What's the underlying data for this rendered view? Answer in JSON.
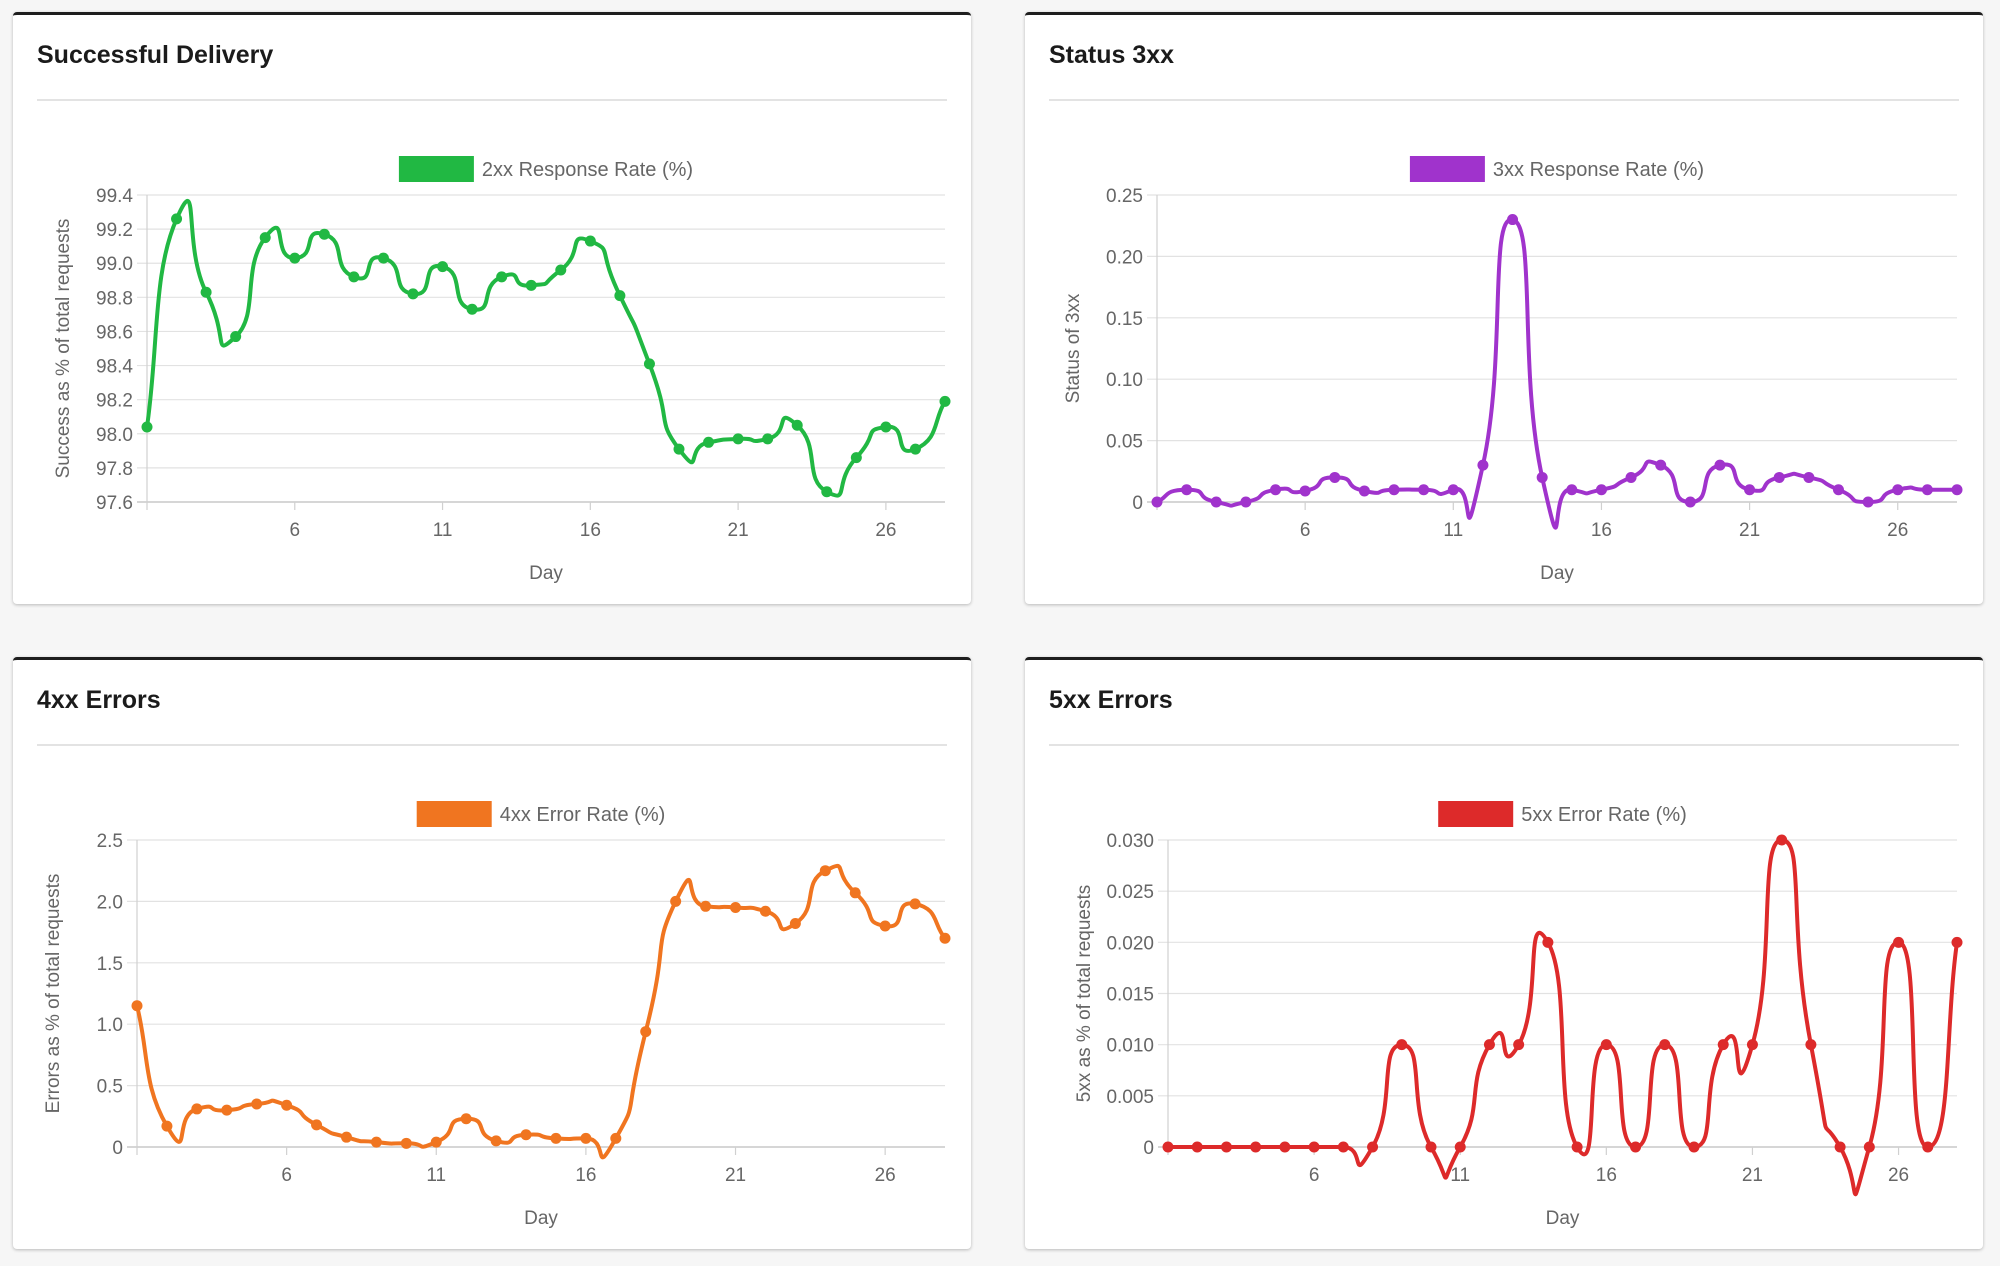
{
  "charts": [
    {
      "title": "Successful Delivery",
      "color": "#21b843",
      "chart_data": {
        "type": "line",
        "title": "Successful Delivery",
        "legend": "2xx Response Rate (%)",
        "xlabel": "Day",
        "ylabel": "Success as % of total requests",
        "x": [
          1,
          2,
          3,
          4,
          5,
          6,
          7,
          8,
          9,
          10,
          11,
          12,
          13,
          14,
          15,
          16,
          17,
          18,
          19,
          20,
          21,
          22,
          23,
          24,
          25,
          26,
          27,
          28
        ],
        "values": [
          98.04,
          99.26,
          98.83,
          98.57,
          99.15,
          99.03,
          99.17,
          98.92,
          99.03,
          98.82,
          98.98,
          98.73,
          98.92,
          98.87,
          98.96,
          99.13,
          98.81,
          98.41,
          97.91,
          97.95,
          97.97,
          97.97,
          98.05,
          97.66,
          97.86,
          98.04,
          97.91,
          98.19
        ],
        "ylim": [
          97.6,
          99.4
        ],
        "yticks": [
          "99.4",
          "99.2",
          "99.0",
          "98.8",
          "98.6",
          "98.4",
          "98.2",
          "98.0",
          "97.8",
          "97.6"
        ],
        "xticks": [
          "6",
          "11",
          "16",
          "21",
          "26"
        ]
      }
    },
    {
      "title": "Status 3xx",
      "color": "#a033cc",
      "chart_data": {
        "type": "line",
        "title": "Status 3xx",
        "legend": "3xx Response Rate (%)",
        "xlabel": "Day",
        "ylabel": "Status of 3xx",
        "x": [
          1,
          2,
          3,
          4,
          5,
          6,
          7,
          8,
          9,
          10,
          11,
          12,
          13,
          14,
          15,
          16,
          17,
          18,
          19,
          20,
          21,
          22,
          23,
          24,
          25,
          26,
          27,
          28
        ],
        "values": [
          0,
          0.01,
          0,
          0,
          0.01,
          0.009,
          0.02,
          0.009,
          0.01,
          0.01,
          0.01,
          0.03,
          0.23,
          0.02,
          0.01,
          0.01,
          0.02,
          0.03,
          0,
          0.03,
          0.01,
          0.02,
          0.02,
          0.01,
          0,
          0.01,
          0.01,
          0.01
        ],
        "ylim": [
          0,
          0.25
        ],
        "yticks": [
          "0.25",
          "0.20",
          "0.15",
          "0.10",
          "0.05",
          "0"
        ],
        "xticks": [
          "6",
          "11",
          "16",
          "21",
          "26"
        ]
      }
    },
    {
      "title": "4xx Errors",
      "color": "#f07520",
      "chart_data": {
        "type": "line",
        "title": "4xx Errors",
        "legend": "4xx Error Rate (%)",
        "xlabel": "Day",
        "ylabel": "Errors as % of total requests",
        "x": [
          1,
          2,
          3,
          4,
          5,
          6,
          7,
          8,
          9,
          10,
          11,
          12,
          13,
          14,
          15,
          16,
          17,
          18,
          19,
          20,
          21,
          22,
          23,
          24,
          25,
          26,
          27,
          28
        ],
        "values": [
          1.15,
          0.17,
          0.31,
          0.3,
          0.35,
          0.34,
          0.18,
          0.08,
          0.04,
          0.03,
          0.04,
          0.23,
          0.05,
          0.1,
          0.07,
          0.07,
          0.07,
          0.94,
          2.0,
          1.96,
          1.95,
          1.92,
          1.82,
          2.25,
          2.07,
          1.8,
          1.98,
          1.7
        ],
        "ylim": [
          0,
          2.5
        ],
        "yticks": [
          "2.5",
          "2.0",
          "1.5",
          "1.0",
          "0.5",
          "0"
        ],
        "xticks": [
          "6",
          "11",
          "16",
          "21",
          "26"
        ]
      }
    },
    {
      "title": "5xx Errors",
      "color": "#dd2a2a",
      "chart_data": {
        "type": "line",
        "title": "5xx Errors",
        "legend": "5xx Error Rate (%)",
        "xlabel": "Day",
        "ylabel": "5xx as % of total requests",
        "x": [
          1,
          2,
          3,
          4,
          5,
          6,
          7,
          8,
          9,
          10,
          11,
          12,
          13,
          14,
          15,
          16,
          17,
          18,
          19,
          20,
          21,
          22,
          23,
          24,
          25,
          26,
          27,
          28
        ],
        "values": [
          0,
          0,
          0,
          0,
          0,
          0,
          0,
          0,
          0.01,
          0,
          0,
          0.01,
          0.01,
          0.02,
          0,
          0.01,
          0,
          0.01,
          0,
          0.01,
          0.01,
          0.03,
          0.01,
          0,
          0,
          0.02,
          0,
          0.02
        ],
        "ylim": [
          0,
          0.03
        ],
        "yticks": [
          "0.030",
          "0.025",
          "0.020",
          "0.015",
          "0.010",
          "0.005",
          "0"
        ],
        "xticks": [
          "6",
          "11",
          "16",
          "21",
          "26"
        ]
      }
    }
  ]
}
